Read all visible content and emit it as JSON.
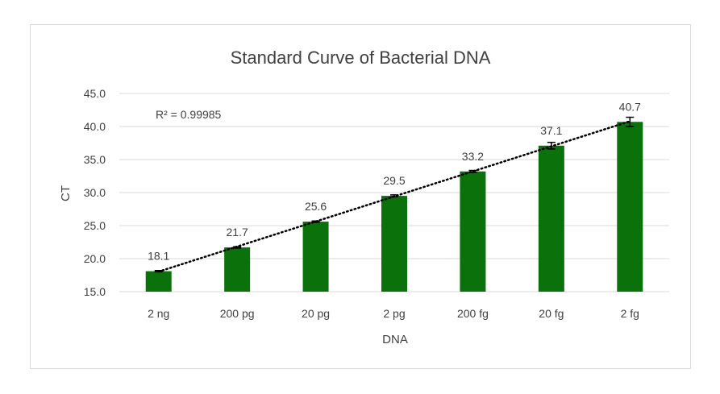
{
  "chart_data": {
    "type": "bar",
    "title": "Standard Curve of Bacterial DNA",
    "xlabel": "DNA",
    "ylabel": "CT",
    "categories": [
      "2 ng",
      "200 pg",
      "20 pg",
      "2 pg",
      "200 fg",
      "20 fg",
      "2 fg"
    ],
    "values": [
      18.1,
      21.7,
      25.6,
      29.5,
      33.2,
      37.1,
      40.7
    ],
    "value_labels": [
      "18.1",
      "21.7",
      "25.6",
      "29.5",
      "33.2",
      "37.1",
      "40.7"
    ],
    "error": [
      0.1,
      0.1,
      0.1,
      0.15,
      0.15,
      0.5,
      0.7
    ],
    "ylim": [
      15,
      45
    ],
    "yticks": [
      "15.0",
      "20.0",
      "25.0",
      "30.0",
      "35.0",
      "40.0",
      "45.0"
    ],
    "grid": true,
    "bar_color": "#0b720b",
    "trendline": {
      "type": "linear",
      "style": "dotted",
      "color": "#000000",
      "label": "R² = 0.99985"
    }
  }
}
